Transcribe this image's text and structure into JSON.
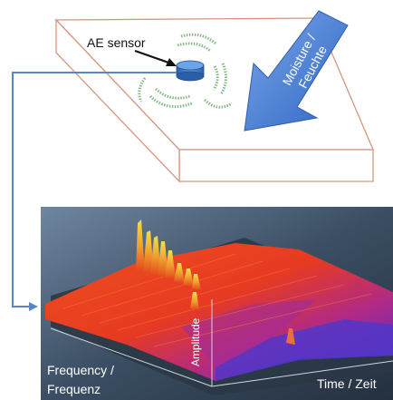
{
  "labels": {
    "sensor": "AE sensor",
    "moisture_line1": "Moisture /",
    "moisture_line2": "Feuchte",
    "amplitude": "Amplitude",
    "frequency_line1": "Frequency /",
    "frequency_line2": "Frequenz",
    "time": "Time / Zeit"
  },
  "colors": {
    "arrow_fill": "#4a82d8",
    "connector": "#5a86c4",
    "sensor_body": "#3d7cc9",
    "wave": "#7fb37f",
    "plot_bg": "#3e4f63",
    "surface_high": "#e83c1c",
    "surface_low": "#4a3ad0"
  }
}
